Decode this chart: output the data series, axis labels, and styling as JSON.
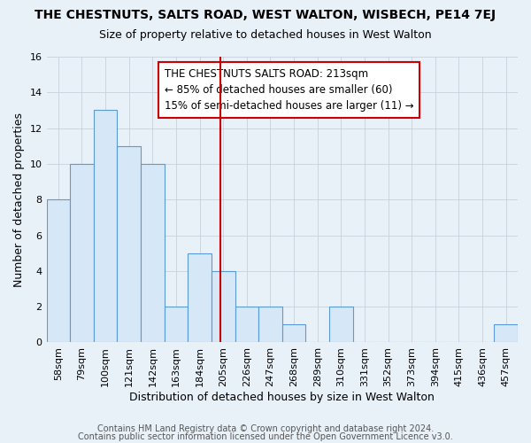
{
  "title": "THE CHESTNUTS, SALTS ROAD, WEST WALTON, WISBECH, PE14 7EJ",
  "subtitle": "Size of property relative to detached houses in West Walton",
  "xlabel": "Distribution of detached houses by size in West Walton",
  "ylabel": "Number of detached properties",
  "bar_edges": [
    58,
    79,
    100,
    121,
    142,
    163,
    184,
    205,
    226,
    247,
    268,
    289,
    310,
    331,
    352,
    373,
    394,
    415,
    436,
    457,
    478
  ],
  "bar_heights": [
    8,
    10,
    13,
    11,
    10,
    2,
    5,
    4,
    2,
    2,
    1,
    0,
    2,
    0,
    0,
    0,
    0,
    0,
    0,
    1
  ],
  "bar_color": "#d6e8f7",
  "bar_edge_color": "#5b9bd5",
  "property_line_x": 213,
  "property_line_color": "#cc0000",
  "ylim": [
    0,
    16
  ],
  "yticks": [
    0,
    2,
    4,
    6,
    8,
    10,
    12,
    14,
    16
  ],
  "legend_line0": "THE CHESTNUTS SALTS ROAD: 213sqm",
  "legend_line1": "← 85% of detached houses are smaller (60)",
  "legend_line2": "15% of semi-detached houses are larger (11) →",
  "footer1": "Contains HM Land Registry data © Crown copyright and database right 2024.",
  "footer2": "Contains public sector information licensed under the Open Government Licence v3.0.",
  "background_color": "#e8f0f8",
  "grid_color": "#c8d0dc",
  "title_fontsize": 10,
  "subtitle_fontsize": 9,
  "ylabel_fontsize": 9,
  "xlabel_fontsize": 9,
  "tick_fontsize": 8,
  "legend_fontsize": 8.5,
  "footer_fontsize": 7
}
